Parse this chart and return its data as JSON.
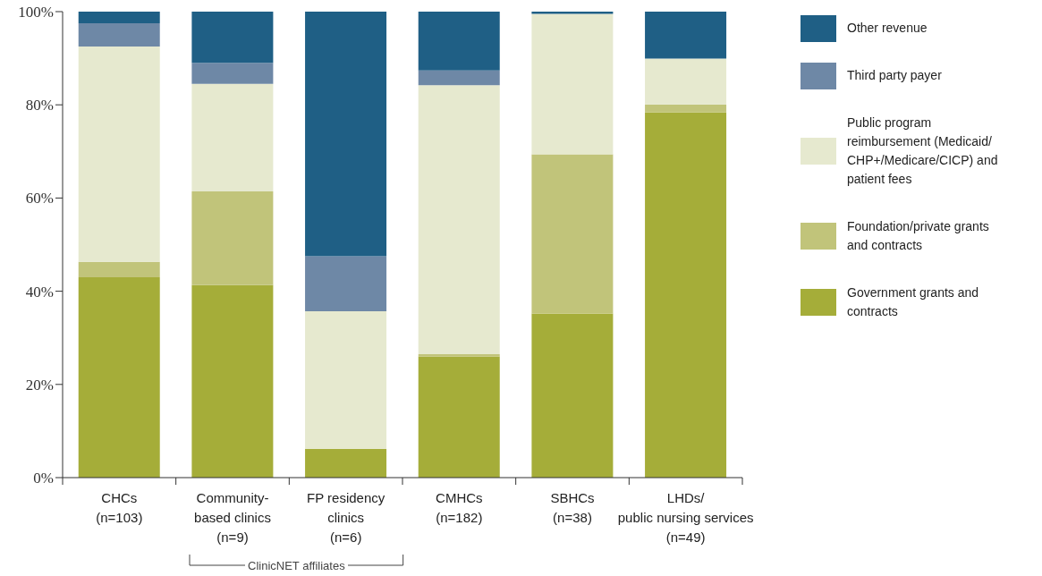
{
  "chart_data": {
    "type": "bar",
    "stacked": true,
    "categories": [
      "CHCs\n(n=103)",
      "Community-\nbased clinics\n(n=9)",
      "FP residency\nclinics\n(n=6)",
      "CMHCs\n(n=182)",
      "SBHCs\n(n=38)",
      "LHDs/\npublic nursing services\n(n=49)"
    ],
    "series": [
      {
        "name": "Government grants and contracts",
        "color": "#a5ad39",
        "values": [
          43.0,
          41.3,
          6.2,
          26.0,
          35.2,
          78.4
        ]
      },
      {
        "name": "Foundation/private grants and contracts",
        "color": "#c1c47a",
        "values": [
          3.3,
          20.1,
          0,
          0.5,
          34.2,
          1.7
        ]
      },
      {
        "name": "Public program reimbursement (Medicaid/ CHP+/Medicare/CICP) and patient fees",
        "color": "#e6e9cf",
        "values": [
          46.2,
          23.1,
          29.5,
          57.7,
          30.1,
          9.8
        ]
      },
      {
        "name": "Third party payer",
        "color": "#6e88a6",
        "values": [
          5.0,
          4.5,
          11.8,
          3.2,
          0,
          0
        ]
      },
      {
        "name": "Other revenue",
        "color": "#1f5f85",
        "values": [
          2.5,
          11.0,
          52.5,
          12.6,
          0.5,
          10.1
        ]
      }
    ],
    "ylim": [
      0,
      100
    ],
    "yticks": [
      {
        "value": 0,
        "label": "0%"
      },
      {
        "value": 20,
        "label": "20%"
      },
      {
        "value": 40,
        "label": "40%"
      },
      {
        "value": 60,
        "label": "60%"
      },
      {
        "value": 80,
        "label": "80%"
      },
      {
        "value": 100,
        "label": "100%"
      }
    ],
    "grid": false,
    "legend": "right",
    "annotations": [
      "ClinicNET affiliates"
    ]
  }
}
